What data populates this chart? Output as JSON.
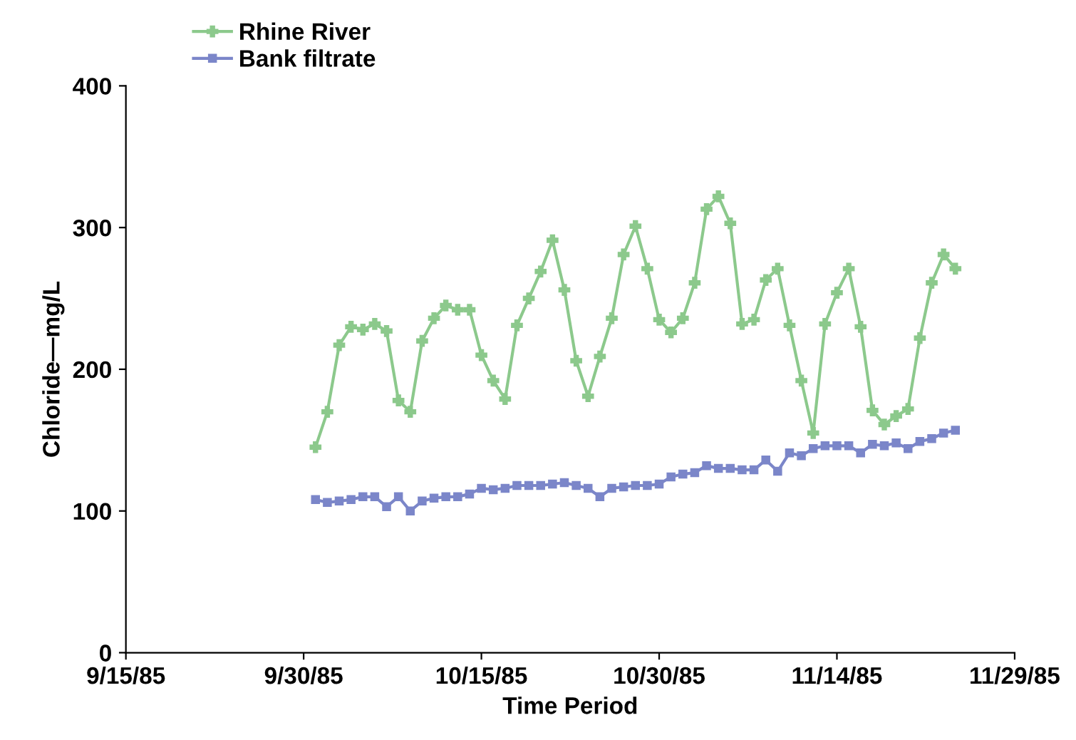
{
  "chart_data": {
    "type": "line",
    "xlabel": "Time Period",
    "ylabel": "Chloride—mg/L",
    "x": [
      "1985-10-01",
      "1985-10-02",
      "1985-10-03",
      "1985-10-04",
      "1985-10-05",
      "1985-10-06",
      "1985-10-07",
      "1985-10-08",
      "1985-10-09",
      "1985-10-10",
      "1985-10-11",
      "1985-10-12",
      "1985-10-13",
      "1985-10-14",
      "1985-10-15",
      "1985-10-16",
      "1985-10-17",
      "1985-10-18",
      "1985-10-19",
      "1985-10-20",
      "1985-10-21",
      "1985-10-22",
      "1985-10-23",
      "1985-10-24",
      "1985-10-25",
      "1985-10-26",
      "1985-10-27",
      "1985-10-28",
      "1985-10-29",
      "1985-10-30",
      "1985-10-31",
      "1985-11-01",
      "1985-11-02",
      "1985-11-03",
      "1985-11-04",
      "1985-11-05",
      "1985-11-06",
      "1985-11-07",
      "1985-11-08",
      "1985-11-09",
      "1985-11-10",
      "1985-11-11",
      "1985-11-12",
      "1985-11-13",
      "1985-11-14",
      "1985-11-15",
      "1985-11-16",
      "1985-11-17",
      "1985-11-18",
      "1985-11-19",
      "1985-11-20",
      "1985-11-21",
      "1985-11-22",
      "1985-11-23",
      "1985-11-24"
    ],
    "series": [
      {
        "name": "Rhine River",
        "color": "#8cc98c",
        "marker": "cross",
        "values": [
          145,
          170,
          217,
          230,
          228,
          232,
          227,
          178,
          170,
          220,
          236,
          245,
          242,
          242,
          210,
          192,
          179,
          231,
          250,
          269,
          291,
          256,
          206,
          181,
          209,
          236,
          281,
          301,
          271,
          235,
          226,
          236,
          261,
          313,
          322,
          303,
          232,
          235,
          263,
          271,
          231,
          192,
          155,
          232,
          254,
          271,
          230,
          171,
          161,
          167,
          172,
          222,
          261,
          281,
          271
        ]
      },
      {
        "name": "Bank filtrate",
        "color": "#7b86c9",
        "marker": "square",
        "values": [
          108,
          106,
          107,
          108,
          110,
          110,
          103,
          110,
          100,
          107,
          109,
          110,
          110,
          112,
          116,
          115,
          116,
          118,
          118,
          118,
          119,
          120,
          118,
          116,
          110,
          116,
          117,
          118,
          118,
          119,
          124,
          126,
          127,
          132,
          130,
          130,
          129,
          129,
          136,
          128,
          141,
          139,
          144,
          146,
          146,
          146,
          141,
          147,
          146,
          148,
          144,
          149,
          151,
          155,
          157
        ]
      }
    ],
    "xlim": [
      "1985-09-15",
      "1985-11-29"
    ],
    "xticks": [
      {
        "value": "1985-09-15",
        "label": "9/15/85"
      },
      {
        "value": "1985-09-30",
        "label": "9/30/85"
      },
      {
        "value": "1985-10-15",
        "label": "10/15/85"
      },
      {
        "value": "1985-10-30",
        "label": "10/30/85"
      },
      {
        "value": "1985-11-14",
        "label": "11/14/85"
      },
      {
        "value": "1985-11-29",
        "label": "11/29/85"
      }
    ],
    "ylim": [
      0,
      400
    ],
    "yticks": [
      0,
      100,
      200,
      300,
      400
    ],
    "grid": false,
    "legend": "top left",
    "line_style": "solid"
  }
}
